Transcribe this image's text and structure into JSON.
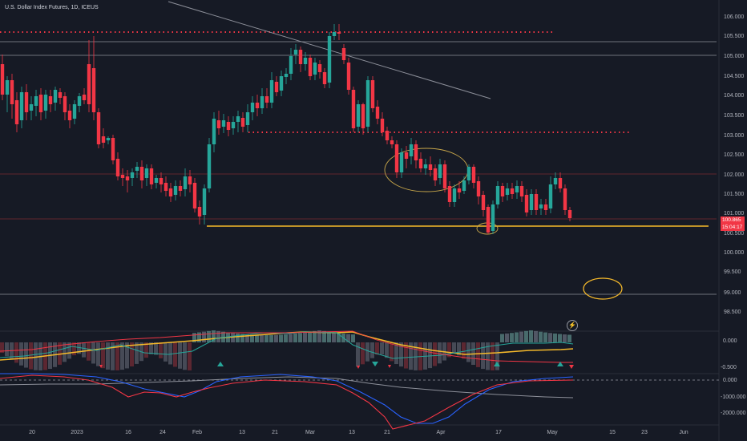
{
  "header": {
    "title": "U.S. Dollar Index Futures, 1D, ICEUS"
  },
  "price_axis": {
    "labels": [
      "106.000",
      "105.500",
      "105.000",
      "104.500",
      "104.000",
      "103.500",
      "103.000",
      "102.500",
      "102.000",
      "101.500",
      "101.000",
      "100.500",
      "100.000",
      "99.500",
      "99.000",
      "98.500"
    ]
  },
  "last_price": {
    "value": "100.865",
    "timer": "15:04:17"
  },
  "osc1_axis": {
    "labels": [
      "0.000",
      "-0.500"
    ]
  },
  "osc2_axis": {
    "labels": [
      "0.000",
      "-1000.000",
      "-2000.000"
    ]
  },
  "time_axis": {
    "labels": [
      "20",
      "2023",
      "16",
      "24",
      "Feb",
      "13",
      "21",
      "Mar",
      "13",
      "21",
      "Apr",
      "17",
      "May",
      "15",
      "23",
      "Jun"
    ]
  },
  "colors": {
    "up": "#26a69a",
    "down": "#f23645",
    "background": "#161a25",
    "support": "#f5b92a"
  },
  "icons": {
    "alert": "lightning-icon"
  }
}
